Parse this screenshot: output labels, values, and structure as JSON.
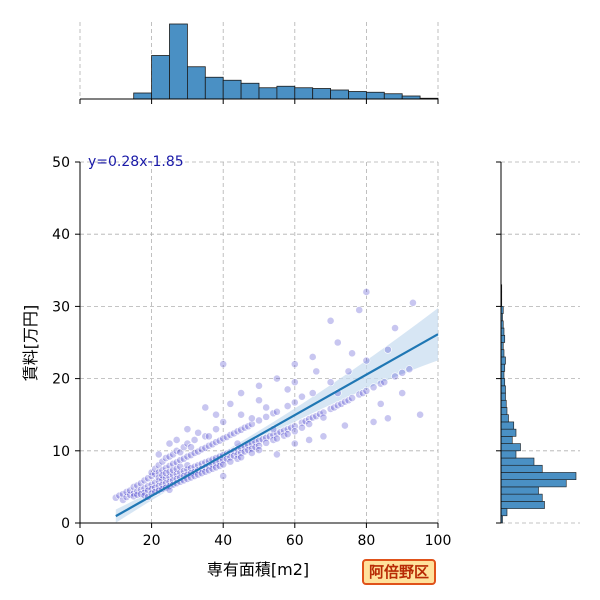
{
  "badge": {
    "label": "阿倍野区",
    "border_color": "#e0521a",
    "background_color": "#ffe19c",
    "text_color": "#b82a05"
  },
  "chart_data": {
    "type": "scatter",
    "xlabel": "専有面積[m2]",
    "ylabel": "賃料[万円]",
    "xlim": [
      0,
      100
    ],
    "ylim": [
      0,
      50
    ],
    "x_ticks": [
      0,
      20,
      40,
      60,
      80,
      100
    ],
    "y_ticks": [
      0,
      10,
      20,
      30,
      40,
      50
    ],
    "grid": true,
    "point_color": "#3a34c9",
    "hist_color": "#4a90c4",
    "line_color": "#1f77b4",
    "band_color": "#c6dbef",
    "regression": {
      "slope": 0.28,
      "intercept": -1.85,
      "label": "y=0.28x-1.85",
      "x_range": [
        10,
        100
      ]
    },
    "marginal_x_histogram": {
      "bin_edges": [
        0,
        5,
        10,
        15,
        20,
        25,
        30,
        35,
        40,
        45,
        50,
        55,
        60,
        65,
        70,
        75,
        80,
        85,
        90,
        95,
        100
      ],
      "counts": [
        0,
        0,
        0,
        0.08,
        0.58,
        1.0,
        0.43,
        0.29,
        0.25,
        0.21,
        0.15,
        0.17,
        0.15,
        0.14,
        0.12,
        0.1,
        0.09,
        0.07,
        0.04,
        0.01
      ]
    },
    "marginal_y_histogram": {
      "bin_edges": [
        0,
        1,
        2,
        3,
        4,
        5,
        6,
        7,
        8,
        9,
        10,
        11,
        12,
        13,
        14,
        15,
        16,
        17,
        18,
        19,
        20,
        21,
        22,
        23,
        24,
        25,
        26,
        27,
        28,
        29,
        30,
        31,
        32,
        33
      ],
      "counts": [
        0.02,
        0.08,
        0.58,
        0.55,
        0.5,
        0.87,
        1.0,
        0.55,
        0.44,
        0.2,
        0.26,
        0.15,
        0.2,
        0.17,
        0.1,
        0.08,
        0.07,
        0.06,
        0.06,
        0.05,
        0.04,
        0.05,
        0.06,
        0.04,
        0.03,
        0.05,
        0.04,
        0.03,
        0.02,
        0.03,
        0.01,
        0.01,
        0.01
      ]
    },
    "points": [
      [
        10,
        3.5
      ],
      [
        11,
        3.8
      ],
      [
        12,
        3.2
      ],
      [
        12,
        4.0
      ],
      [
        13,
        3.6
      ],
      [
        13,
        4.3
      ],
      [
        14,
        3.9
      ],
      [
        14,
        4.5
      ],
      [
        15,
        4.1
      ],
      [
        15,
        3.7
      ],
      [
        15,
        5.0
      ],
      [
        16,
        4.4
      ],
      [
        16,
        3.9
      ],
      [
        16,
        5.2
      ],
      [
        17,
        4.6
      ],
      [
        17,
        4.0
      ],
      [
        17,
        5.5
      ],
      [
        18,
        4.8
      ],
      [
        18,
        4.2
      ],
      [
        18,
        5.9
      ],
      [
        18,
        3.8
      ],
      [
        19,
        5.1
      ],
      [
        19,
        4.5
      ],
      [
        19,
        6.2
      ],
      [
        19,
        3.6
      ],
      [
        20,
        5.3
      ],
      [
        20,
        4.7
      ],
      [
        20,
        6.5
      ],
      [
        20,
        4.1
      ],
      [
        20,
        7.0
      ],
      [
        21,
        5.6
      ],
      [
        21,
        4.9
      ],
      [
        21,
        6.8
      ],
      [
        21,
        4.3
      ],
      [
        21,
        7.5
      ],
      [
        22,
        5.8
      ],
      [
        22,
        5.1
      ],
      [
        22,
        7.0
      ],
      [
        22,
        4.5
      ],
      [
        22,
        8.0
      ],
      [
        22,
        6.3
      ],
      [
        23,
        6.0
      ],
      [
        23,
        5.3
      ],
      [
        23,
        7.3
      ],
      [
        23,
        4.7
      ],
      [
        23,
        8.5
      ],
      [
        23,
        6.6
      ],
      [
        24,
        6.2
      ],
      [
        24,
        5.5
      ],
      [
        24,
        7.6
      ],
      [
        24,
        4.9
      ],
      [
        24,
        9.0
      ],
      [
        24,
        6.9
      ],
      [
        25,
        6.4
      ],
      [
        25,
        5.7
      ],
      [
        25,
        7.9
      ],
      [
        25,
        5.1
      ],
      [
        25,
        9.2
      ],
      [
        25,
        7.1
      ],
      [
        25,
        4.6
      ],
      [
        26,
        6.6
      ],
      [
        26,
        5.9
      ],
      [
        26,
        8.2
      ],
      [
        26,
        5.3
      ],
      [
        26,
        9.5
      ],
      [
        26,
        7.3
      ],
      [
        27,
        6.8
      ],
      [
        27,
        6.1
      ],
      [
        27,
        8.4
      ],
      [
        27,
        5.5
      ],
      [
        27,
        10.0
      ],
      [
        27,
        7.5
      ],
      [
        28,
        7.0
      ],
      [
        28,
        6.3
      ],
      [
        28,
        8.7
      ],
      [
        28,
        5.7
      ],
      [
        28,
        9.8
      ],
      [
        28,
        7.8
      ],
      [
        29,
        7.2
      ],
      [
        29,
        6.5
      ],
      [
        29,
        8.9
      ],
      [
        29,
        5.9
      ],
      [
        29,
        10.5
      ],
      [
        30,
        7.4
      ],
      [
        30,
        6.7
      ],
      [
        30,
        9.2
      ],
      [
        30,
        6.1
      ],
      [
        30,
        11.0
      ],
      [
        30,
        8.0
      ],
      [
        31,
        7.6
      ],
      [
        31,
        6.9
      ],
      [
        31,
        9.4
      ],
      [
        31,
        6.3
      ],
      [
        32,
        7.8
      ],
      [
        32,
        7.1
      ],
      [
        32,
        9.7
      ],
      [
        32,
        6.5
      ],
      [
        32,
        11.5
      ],
      [
        33,
        8.0
      ],
      [
        33,
        7.3
      ],
      [
        33,
        9.9
      ],
      [
        33,
        6.7
      ],
      [
        34,
        8.2
      ],
      [
        34,
        7.5
      ],
      [
        34,
        10.2
      ],
      [
        34,
        6.9
      ],
      [
        35,
        8.4
      ],
      [
        35,
        7.7
      ],
      [
        35,
        10.4
      ],
      [
        35,
        7.1
      ],
      [
        35,
        12.0
      ],
      [
        36,
        8.6
      ],
      [
        36,
        7.9
      ],
      [
        36,
        10.7
      ],
      [
        36,
        7.3
      ],
      [
        37,
        8.8
      ],
      [
        37,
        8.1
      ],
      [
        37,
        10.9
      ],
      [
        37,
        7.5
      ],
      [
        38,
        9.0
      ],
      [
        38,
        8.3
      ],
      [
        38,
        11.2
      ],
      [
        38,
        7.7
      ],
      [
        38,
        13.0
      ],
      [
        39,
        9.2
      ],
      [
        39,
        8.5
      ],
      [
        39,
        11.4
      ],
      [
        39,
        7.9
      ],
      [
        40,
        9.4
      ],
      [
        40,
        8.7
      ],
      [
        40,
        11.7
      ],
      [
        40,
        8.1
      ],
      [
        40,
        14.0
      ],
      [
        40,
        6.5
      ],
      [
        41,
        9.6
      ],
      [
        41,
        8.9
      ],
      [
        41,
        11.9
      ],
      [
        42,
        9.8
      ],
      [
        42,
        9.1
      ],
      [
        42,
        12.2
      ],
      [
        42,
        8.5
      ],
      [
        43,
        10.0
      ],
      [
        43,
        9.3
      ],
      [
        43,
        12.4
      ],
      [
        44,
        10.2
      ],
      [
        44,
        9.5
      ],
      [
        44,
        12.7
      ],
      [
        44,
        8.9
      ],
      [
        45,
        10.4
      ],
      [
        45,
        9.7
      ],
      [
        45,
        12.9
      ],
      [
        45,
        9.1
      ],
      [
        45,
        15.0
      ],
      [
        46,
        10.6
      ],
      [
        46,
        9.9
      ],
      [
        46,
        13.2
      ],
      [
        47,
        10.8
      ],
      [
        47,
        10.1
      ],
      [
        47,
        13.4
      ],
      [
        48,
        11.0
      ],
      [
        48,
        10.3
      ],
      [
        48,
        13.7
      ],
      [
        48,
        9.7
      ],
      [
        49,
        11.2
      ],
      [
        49,
        10.5
      ],
      [
        50,
        11.4
      ],
      [
        50,
        10.7
      ],
      [
        50,
        14.2
      ],
      [
        50,
        10.1
      ],
      [
        50,
        17.0
      ],
      [
        51,
        11.6
      ],
      [
        52,
        11.8
      ],
      [
        52,
        11.1
      ],
      [
        52,
        14.7
      ],
      [
        53,
        12.0
      ],
      [
        54,
        12.2
      ],
      [
        54,
        11.5
      ],
      [
        54,
        15.2
      ],
      [
        55,
        12.4
      ],
      [
        55,
        11.7
      ],
      [
        55,
        15.4
      ],
      [
        55,
        9.5
      ],
      [
        56,
        12.6
      ],
      [
        57,
        12.8
      ],
      [
        57,
        12.1
      ],
      [
        58,
        13.0
      ],
      [
        58,
        12.3
      ],
      [
        58,
        16.2
      ],
      [
        59,
        13.2
      ],
      [
        60,
        13.4
      ],
      [
        60,
        12.7
      ],
      [
        60,
        16.7
      ],
      [
        60,
        19.5
      ],
      [
        60,
        11.0
      ],
      [
        62,
        13.9
      ],
      [
        62,
        13.2
      ],
      [
        63,
        14.1
      ],
      [
        64,
        14.4
      ],
      [
        64,
        13.7
      ],
      [
        65,
        14.6
      ],
      [
        65,
        18.0
      ],
      [
        66,
        14.8
      ],
      [
        67,
        15.1
      ],
      [
        68,
        15.3
      ],
      [
        68,
        14.6
      ],
      [
        70,
        15.8
      ],
      [
        70,
        19.5
      ],
      [
        71,
        16.0
      ],
      [
        72,
        16.3
      ],
      [
        73,
        16.5
      ],
      [
        74,
        16.8
      ],
      [
        75,
        17.0
      ],
      [
        75,
        21.0
      ],
      [
        76,
        17.3
      ],
      [
        78,
        17.8
      ],
      [
        79,
        18.0
      ],
      [
        80,
        18.3
      ],
      [
        80,
        22.5
      ],
      [
        82,
        18.8
      ],
      [
        84,
        19.3
      ],
      [
        85,
        19.5
      ],
      [
        86,
        14.5
      ],
      [
        88,
        20.3
      ],
      [
        90,
        20.8
      ],
      [
        92,
        21.3
      ],
      [
        93,
        30.5
      ],
      [
        95,
        15.0
      ],
      [
        80,
        32.0
      ],
      [
        78,
        29.5
      ],
      [
        70,
        28.0
      ],
      [
        72,
        25.0
      ],
      [
        65,
        23.0
      ],
      [
        60,
        22.0
      ],
      [
        55,
        20.0
      ],
      [
        50,
        19.0
      ],
      [
        45,
        18.0
      ],
      [
        40,
        22.0
      ],
      [
        35,
        16.0
      ],
      [
        30,
        13.0
      ],
      [
        25,
        11.0
      ],
      [
        22,
        9.5
      ],
      [
        42,
        16.5
      ],
      [
        58,
        18.5
      ],
      [
        68,
        12.0
      ],
      [
        74,
        13.5
      ],
      [
        82,
        14.0
      ],
      [
        86,
        24.0
      ],
      [
        88,
        27.0
      ],
      [
        76,
        23.5
      ],
      [
        66,
        21.0
      ],
      [
        62,
        17.5
      ],
      [
        52,
        16.0
      ],
      [
        48,
        14.5
      ],
      [
        38,
        15.0
      ],
      [
        33,
        12.5
      ],
      [
        27,
        11.5
      ],
      [
        31,
        10.5
      ],
      [
        36,
        12.0
      ],
      [
        44,
        11.0
      ],
      [
        54,
        13.0
      ],
      [
        64,
        11.5
      ],
      [
        72,
        18.0
      ],
      [
        84,
        16.5
      ],
      [
        90,
        18.0
      ]
    ]
  }
}
